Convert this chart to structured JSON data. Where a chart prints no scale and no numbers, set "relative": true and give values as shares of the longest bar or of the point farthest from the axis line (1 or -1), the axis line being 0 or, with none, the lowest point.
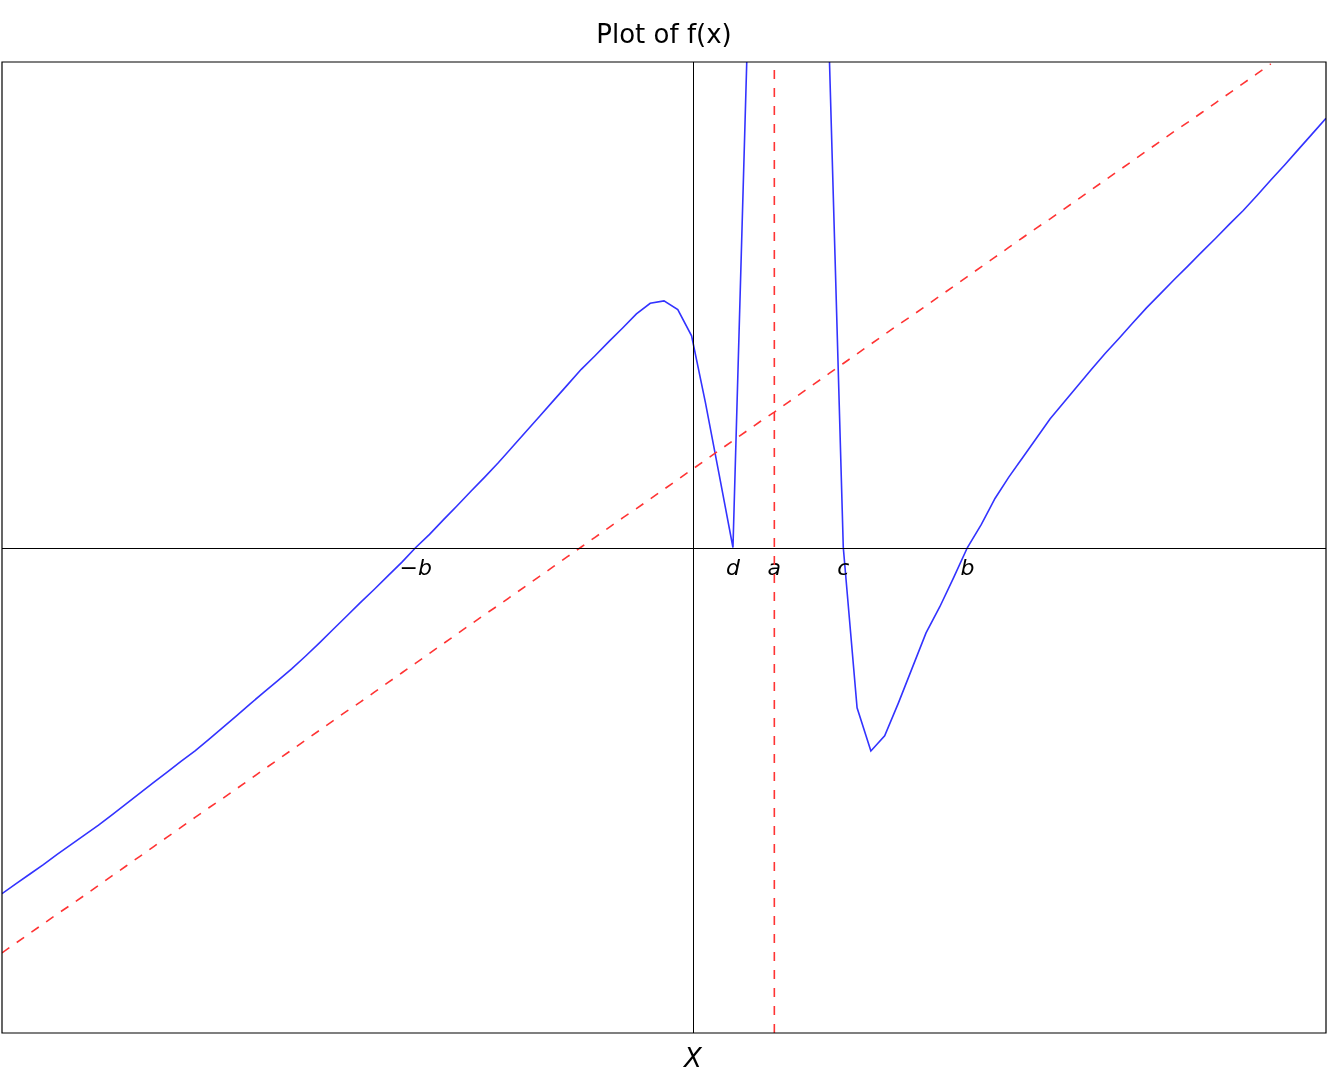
{
  "chart_data": {
    "type": "line",
    "title": "Plot of f(x)",
    "xlabel": "X",
    "relative": true,
    "tick_labels": "x",
    "categories": [
      null,
      null,
      null,
      null,
      null,
      null,
      null,
      null,
      null,
      null,
      null,
      null,
      null,
      null,
      null,
      null,
      null,
      null,
      null,
      null,
      null,
      null,
      null,
      null,
      null,
      null,
      null,
      null,
      null,
      null,
      "−b",
      null,
      null,
      null,
      null,
      null,
      null,
      null,
      null,
      null,
      null,
      null,
      null,
      null,
      null,
      null,
      null,
      null,
      null,
      null,
      null,
      null,
      null,
      "d",
      null,
      null,
      "a",
      null,
      null,
      null,
      null,
      "c",
      null,
      null,
      null,
      null,
      null,
      null,
      null,
      null,
      "b",
      null,
      null,
      null,
      null,
      null,
      null,
      null,
      null,
      null,
      null,
      null,
      null,
      null,
      null,
      null,
      null,
      null,
      null,
      null,
      null,
      null,
      null,
      null,
      null,
      null,
      null
    ],
    "series": [
      {
        "color": "#3333ff",
        "line_style": "solid",
        "values": [
          -0.713,
          -0.693,
          -0.673,
          -0.653,
          -0.632,
          -0.612,
          -0.592,
          -0.572,
          -0.55,
          -0.528,
          -0.506,
          -0.484,
          -0.462,
          -0.44,
          -0.419,
          -0.395,
          -0.371,
          -0.347,
          -0.322,
          -0.298,
          -0.274,
          -0.25,
          -0.224,
          -0.197,
          -0.169,
          -0.141,
          -0.113,
          -0.086,
          -0.058,
          -0.03,
          0.0,
          0.027,
          0.057,
          0.086,
          0.116,
          0.145,
          0.175,
          0.207,
          0.239,
          0.271,
          0.303,
          0.335,
          0.367,
          0.395,
          0.424,
          0.452,
          0.481,
          0.503,
          0.508,
          0.49,
          0.436,
          0.299,
          0.15,
          0.0,
          1.0,
          null,
          null,
          null,
          null,
          null,
          1.0,
          0.0,
          -0.33,
          -0.419,
          -0.388,
          -0.32,
          -0.248,
          -0.176,
          -0.122,
          -0.062,
          0.0,
          0.047,
          0.101,
          0.145,
          0.185,
          0.225,
          0.265,
          0.299,
          0.333,
          0.367,
          0.4,
          0.431,
          0.463,
          0.494,
          0.523,
          0.552,
          0.58,
          0.609,
          0.637,
          0.666,
          0.694,
          0.725,
          0.757,
          0.788,
          0.82,
          0.852,
          0.884
        ]
      },
      {
        "color": "#ff3333",
        "line_style": "dashed",
        "values": [
          -0.835,
          -0.815,
          -0.795,
          -0.775,
          -0.755,
          -0.736,
          -0.716,
          -0.696,
          -0.676,
          -0.656,
          -0.636,
          -0.616,
          -0.596,
          -0.576,
          -0.556,
          -0.536,
          -0.517,
          -0.497,
          -0.477,
          -0.457,
          -0.437,
          -0.417,
          -0.397,
          -0.377,
          -0.357,
          -0.337,
          -0.318,
          -0.298,
          -0.278,
          -0.258,
          -0.238,
          -0.218,
          -0.198,
          -0.178,
          -0.158,
          -0.138,
          -0.119,
          -0.099,
          -0.079,
          -0.059,
          -0.039,
          -0.019,
          0.001,
          0.021,
          0.041,
          0.061,
          0.08,
          0.1,
          0.12,
          0.14,
          0.16,
          0.18,
          0.2,
          0.22,
          0.24,
          0.26,
          0.279,
          0.299,
          0.319,
          0.339,
          0.359,
          0.379,
          0.399,
          0.419,
          0.439,
          0.459,
          0.478,
          0.498,
          0.518,
          0.538,
          0.558,
          0.578,
          0.598,
          0.618,
          0.638,
          0.658,
          0.677,
          0.697,
          0.717,
          0.737,
          0.757,
          0.777,
          0.797,
          0.817,
          0.837,
          0.857,
          0.876,
          0.896,
          0.916,
          0.936,
          0.956,
          0.976,
          0.996,
          null,
          null,
          null,
          null
        ]
      }
    ],
    "ref_lines": [
      {
        "axis": "x",
        "value": "a",
        "color": "#ff3333",
        "line_style": "dashed"
      }
    ]
  }
}
